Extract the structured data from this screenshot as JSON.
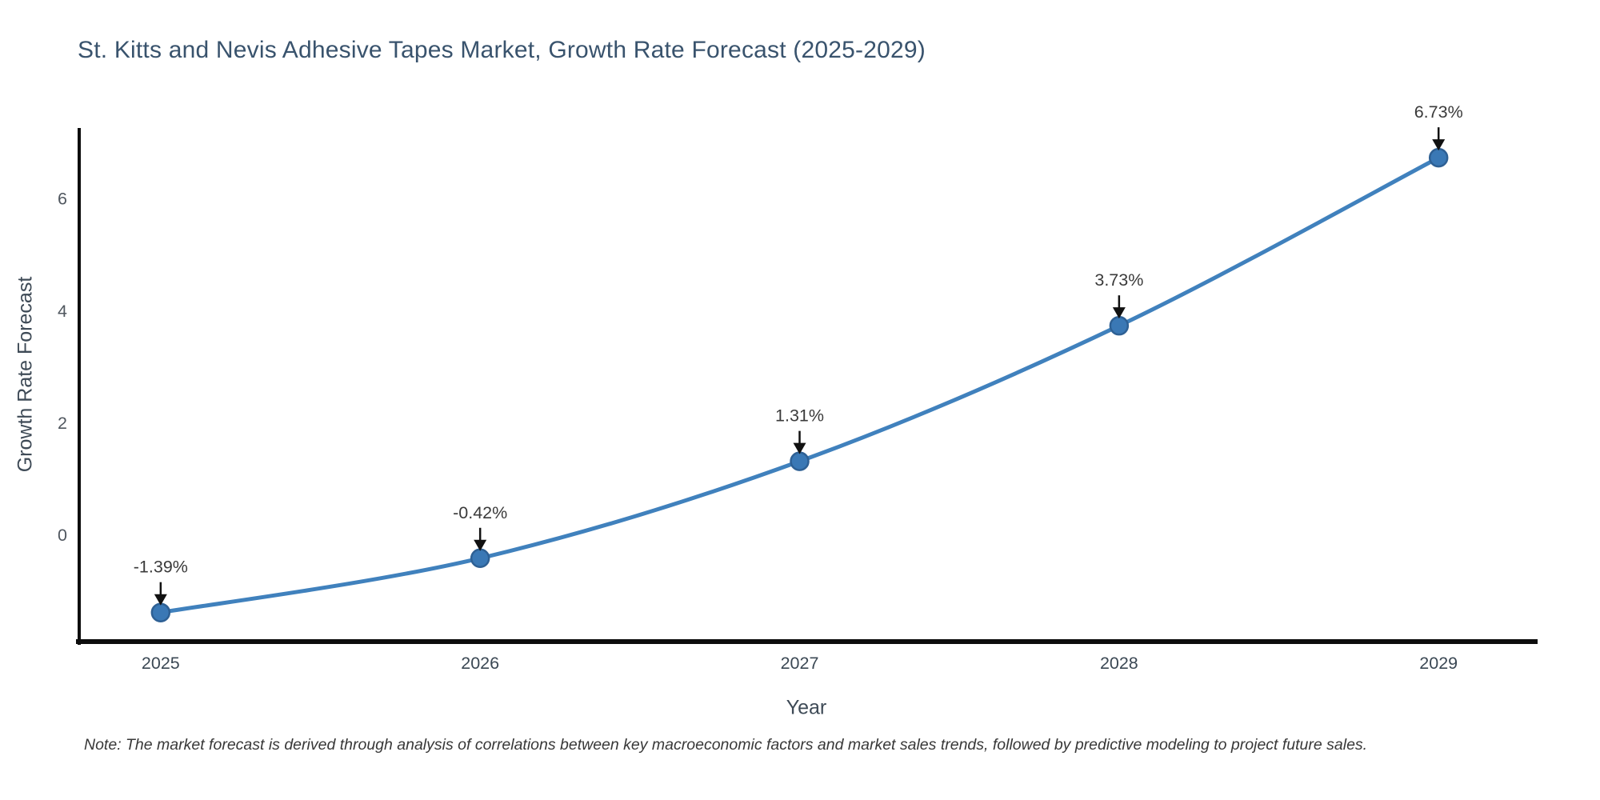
{
  "chart": {
    "title": "St. Kitts and Nevis Adhesive Tapes Market, Growth Rate Forecast (2025-2029)",
    "xlabel": "Year",
    "ylabel": "Growth Rate Forecast",
    "note": "Note: The market forecast is derived through analysis of correlations between key macroeconomic factors and market sales trends, followed by predictive modeling to project future sales.",
    "colors": {
      "title_text": "#39536d",
      "axis_line": "#0d0d0d",
      "y_tick_text": "#50575f",
      "x_tick_text": "#3b4854",
      "line": "#4081bd",
      "marker_fill": "#3a78b5",
      "marker_edge": "#2e6094",
      "annotation_text": "#3a3a3a",
      "arrow": "#111111",
      "background": "#ffffff"
    }
  },
  "chart_data": {
    "type": "line",
    "title": "St. Kitts and Nevis Adhesive Tapes Market, Growth Rate Forecast (2025-2029)",
    "xlabel": "Year",
    "ylabel": "Growth Rate Forecast",
    "x": [
      2025,
      2026,
      2027,
      2028,
      2029
    ],
    "values": [
      -1.39,
      -0.42,
      1.31,
      3.73,
      6.73
    ],
    "point_labels": [
      "-1.39%",
      "-0.42%",
      "1.31%",
      "3.73%",
      "6.73%"
    ],
    "yticks": [
      0,
      2,
      4,
      6
    ],
    "xlim": [
      2024.74,
      2029.31
    ],
    "ylim": [
      -1.88,
      7.26
    ],
    "grid": false,
    "legend_position": "none",
    "smooth": true,
    "marker": "circle",
    "annotations": "value labels above each point with downward arrows"
  }
}
